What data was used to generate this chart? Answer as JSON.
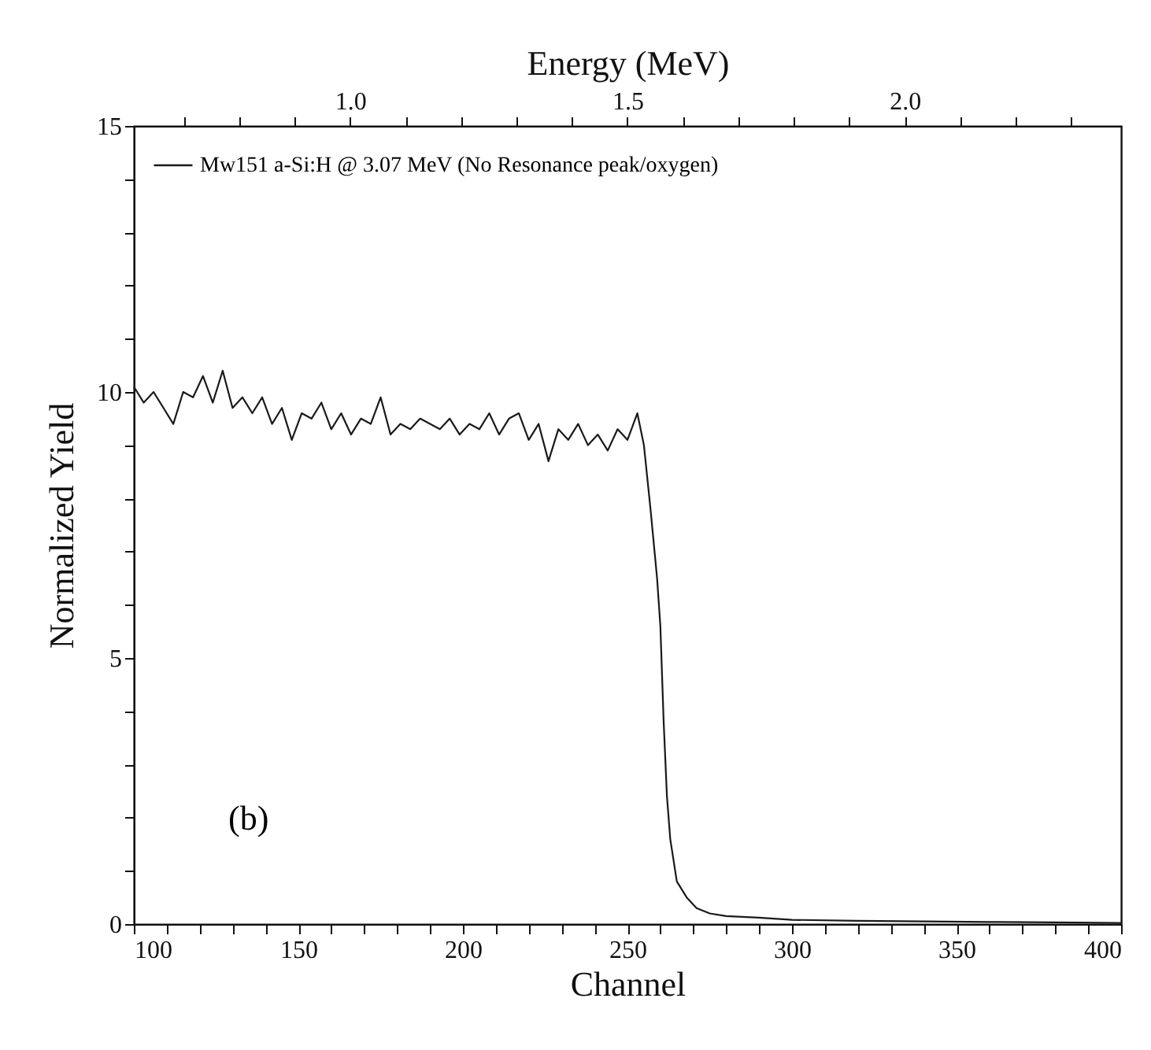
{
  "chart_data": {
    "type": "line",
    "xlabel": "Channel",
    "ylabel": "Normalized Yield",
    "x2label": "Energy (MeV)",
    "x": [
      100,
      103,
      106,
      109,
      112,
      115,
      118,
      121,
      124,
      127,
      130,
      133,
      136,
      139,
      142,
      145,
      148,
      151,
      154,
      157,
      160,
      163,
      166,
      169,
      172,
      175,
      178,
      181,
      184,
      187,
      190,
      193,
      196,
      199,
      202,
      205,
      208,
      211,
      214,
      217,
      220,
      223,
      226,
      229,
      232,
      235,
      238,
      241,
      244,
      247,
      250,
      253,
      255,
      256,
      257,
      259,
      260,
      261,
      262,
      263,
      265,
      268,
      271,
      275,
      280,
      290,
      300,
      320,
      340,
      360,
      380,
      400
    ],
    "series": [
      {
        "name": "Mw151 a-Si:H @ 3.07 MeV (No Resonance peak/oxygen)",
        "color": "#1a1a1a",
        "values": [
          10.1,
          9.8,
          10.0,
          9.7,
          9.4,
          10.0,
          9.9,
          10.3,
          9.8,
          10.4,
          9.7,
          9.9,
          9.6,
          9.9,
          9.4,
          9.7,
          9.1,
          9.6,
          9.5,
          9.8,
          9.3,
          9.6,
          9.2,
          9.5,
          9.4,
          9.9,
          9.2,
          9.4,
          9.3,
          9.5,
          9.4,
          9.3,
          9.5,
          9.2,
          9.4,
          9.3,
          9.6,
          9.2,
          9.5,
          9.6,
          9.1,
          9.4,
          8.7,
          9.3,
          9.1,
          9.4,
          9.0,
          9.2,
          8.9,
          9.3,
          9.1,
          9.6,
          9.0,
          8.4,
          7.8,
          6.5,
          5.6,
          3.8,
          2.4,
          1.6,
          0.8,
          0.5,
          0.3,
          0.2,
          0.15,
          0.12,
          0.08,
          0.06,
          0.05,
          0.04,
          0.03,
          0.02
        ]
      }
    ],
    "xlim": [
      100,
      400
    ],
    "xticks": [
      100,
      {
        "value": 110,
        "label": null
      },
      {
        "value": 120,
        "label": null
      },
      {
        "value": 130,
        "label": null
      },
      {
        "value": 140,
        "label": null
      },
      150,
      {
        "value": 160,
        "label": null
      },
      {
        "value": 170,
        "label": null
      },
      {
        "value": 180,
        "label": null
      },
      {
        "value": 190,
        "label": null
      },
      200,
      {
        "value": 210,
        "label": null
      },
      {
        "value": 220,
        "label": null
      },
      {
        "value": 230,
        "label": null
      },
      {
        "value": 240,
        "label": null
      },
      250,
      {
        "value": 260,
        "label": null
      },
      {
        "value": 270,
        "label": null
      },
      {
        "value": 280,
        "label": null
      },
      {
        "value": 290,
        "label": null
      },
      300,
      {
        "value": 310,
        "label": null
      },
      {
        "value": 320,
        "label": null
      },
      {
        "value": 330,
        "label": null
      },
      {
        "value": 340,
        "label": null
      },
      350,
      {
        "value": 360,
        "label": null
      },
      {
        "value": 370,
        "label": null
      },
      {
        "value": 380,
        "label": null
      },
      {
        "value": 390,
        "label": null
      },
      400
    ],
    "ylim": [
      0,
      15
    ],
    "yticks": [
      0,
      {
        "value": 1,
        "label": null
      },
      {
        "value": 2,
        "label": null
      },
      {
        "value": 3,
        "label": null
      },
      {
        "value": 4,
        "label": null
      },
      5,
      {
        "value": 6,
        "label": null
      },
      {
        "value": 7,
        "label": null
      },
      {
        "value": 8,
        "label": null
      },
      {
        "value": 9,
        "label": null
      },
      10,
      {
        "value": 11,
        "label": null
      },
      {
        "value": 12,
        "label": null
      },
      {
        "value": 13,
        "label": null
      },
      {
        "value": 14,
        "label": null
      },
      15
    ],
    "x2lim": [
      0.61,
      2.39
    ],
    "x2ticks": [
      {
        "value": 0.7,
        "label": null
      },
      {
        "value": 0.8,
        "label": null
      },
      {
        "value": 0.9,
        "label": null
      },
      {
        "value": 1.0,
        "label": "1.0"
      },
      {
        "value": 1.1,
        "label": null
      },
      {
        "value": 1.2,
        "label": null
      },
      {
        "value": 1.3,
        "label": null
      },
      {
        "value": 1.4,
        "label": null
      },
      {
        "value": 1.5,
        "label": "1.5"
      },
      {
        "value": 1.6,
        "label": null
      },
      {
        "value": 1.7,
        "label": null
      },
      {
        "value": 1.8,
        "label": null
      },
      {
        "value": 1.9,
        "label": null
      },
      {
        "value": 2.0,
        "label": "2.0"
      },
      {
        "value": 2.1,
        "label": null
      },
      {
        "value": 2.2,
        "label": null
      },
      {
        "value": 2.3,
        "label": null
      }
    ],
    "annotations": [
      "(b)"
    ],
    "legend": "top left",
    "line_style": "solid",
    "grid": false
  }
}
